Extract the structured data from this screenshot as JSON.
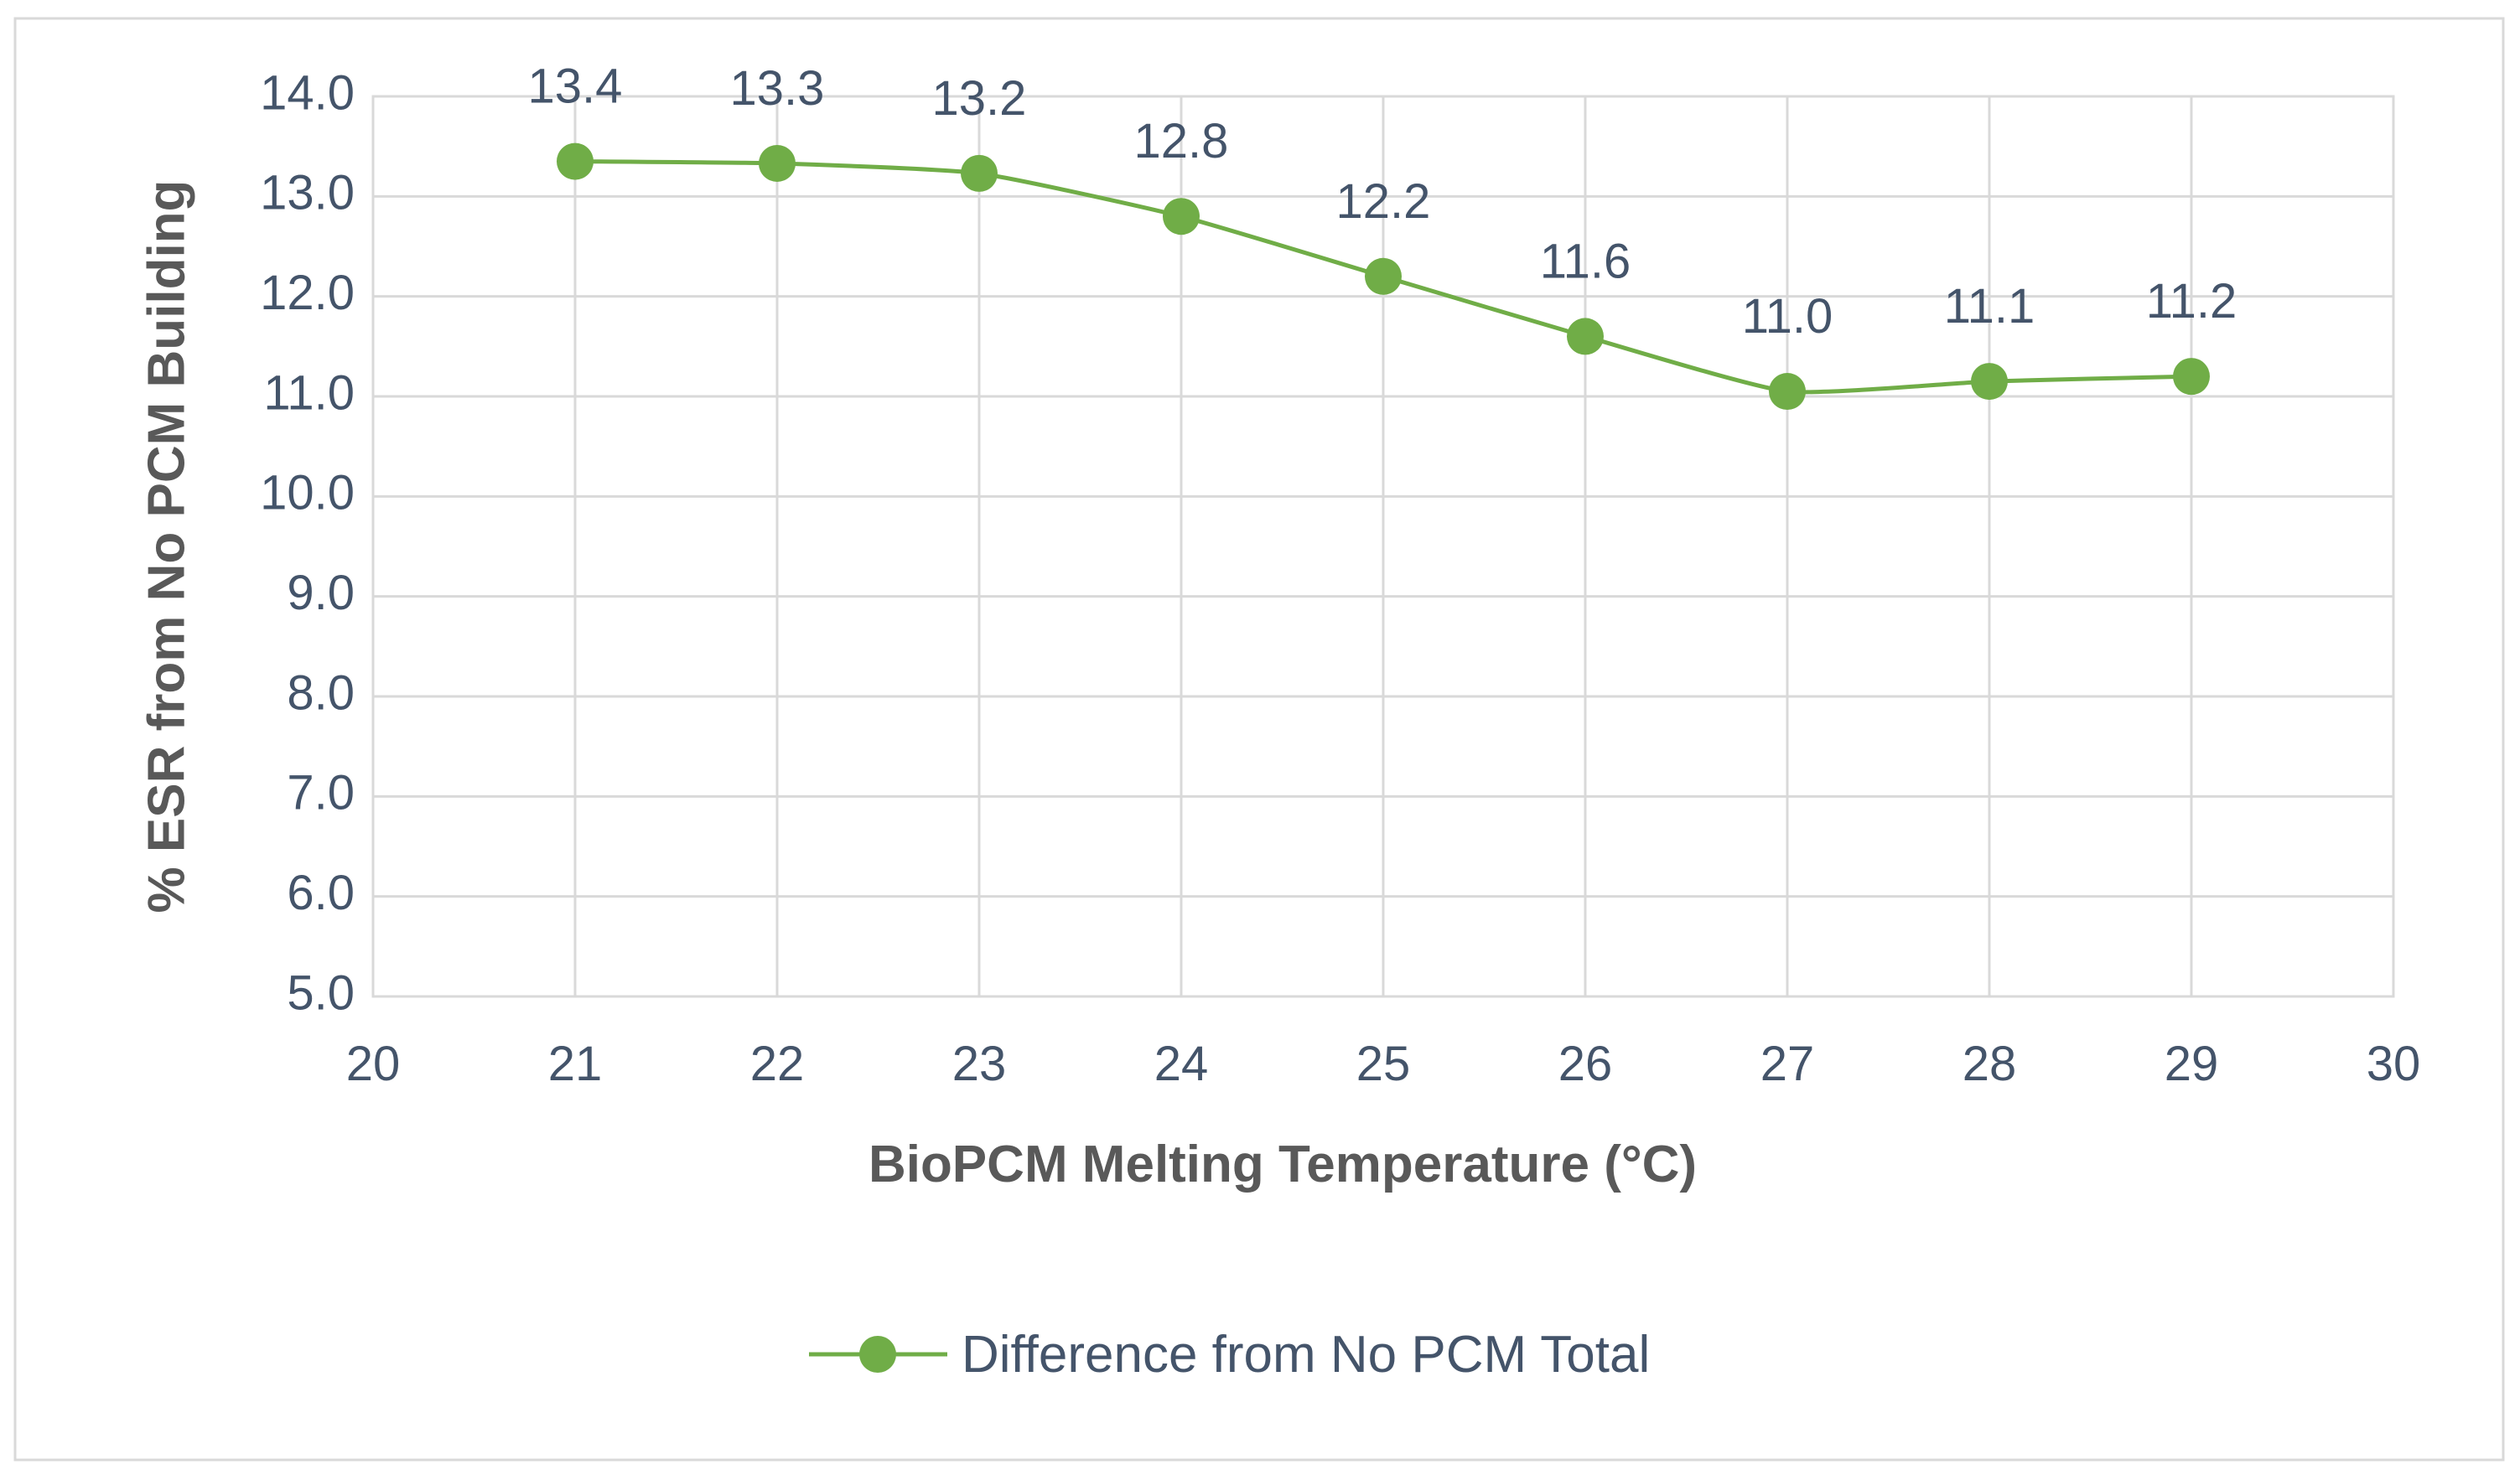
{
  "chart_data": {
    "type": "line",
    "title": "",
    "xlabel": "BioPCM Melting Temperature (°C)",
    "ylabel": "% ESR from No PCM Building",
    "xlim": [
      20,
      30
    ],
    "ylim": [
      5.0,
      14.0
    ],
    "x_ticks": [
      "20",
      "21",
      "22",
      "23",
      "24",
      "25",
      "26",
      "27",
      "28",
      "29",
      "30"
    ],
    "y_ticks": [
      "5.0",
      "6.0",
      "7.0",
      "8.0",
      "9.0",
      "10.0",
      "11.0",
      "12.0",
      "13.0",
      "14.0"
    ],
    "grid": true,
    "legend_position": "bottom",
    "series": [
      {
        "name": "Difference from No PCM Total",
        "color": "#70ad47",
        "x": [
          21,
          22,
          23,
          24,
          25,
          26,
          27,
          28,
          29
        ],
        "values": [
          13.35,
          13.33,
          13.23,
          12.8,
          12.2,
          11.6,
          11.05,
          11.15,
          11.2
        ],
        "labels": [
          "13.4",
          "13.3",
          "13.2",
          "12.8",
          "12.2",
          "11.6",
          "11.0",
          "11.1",
          "11.2"
        ]
      }
    ]
  }
}
